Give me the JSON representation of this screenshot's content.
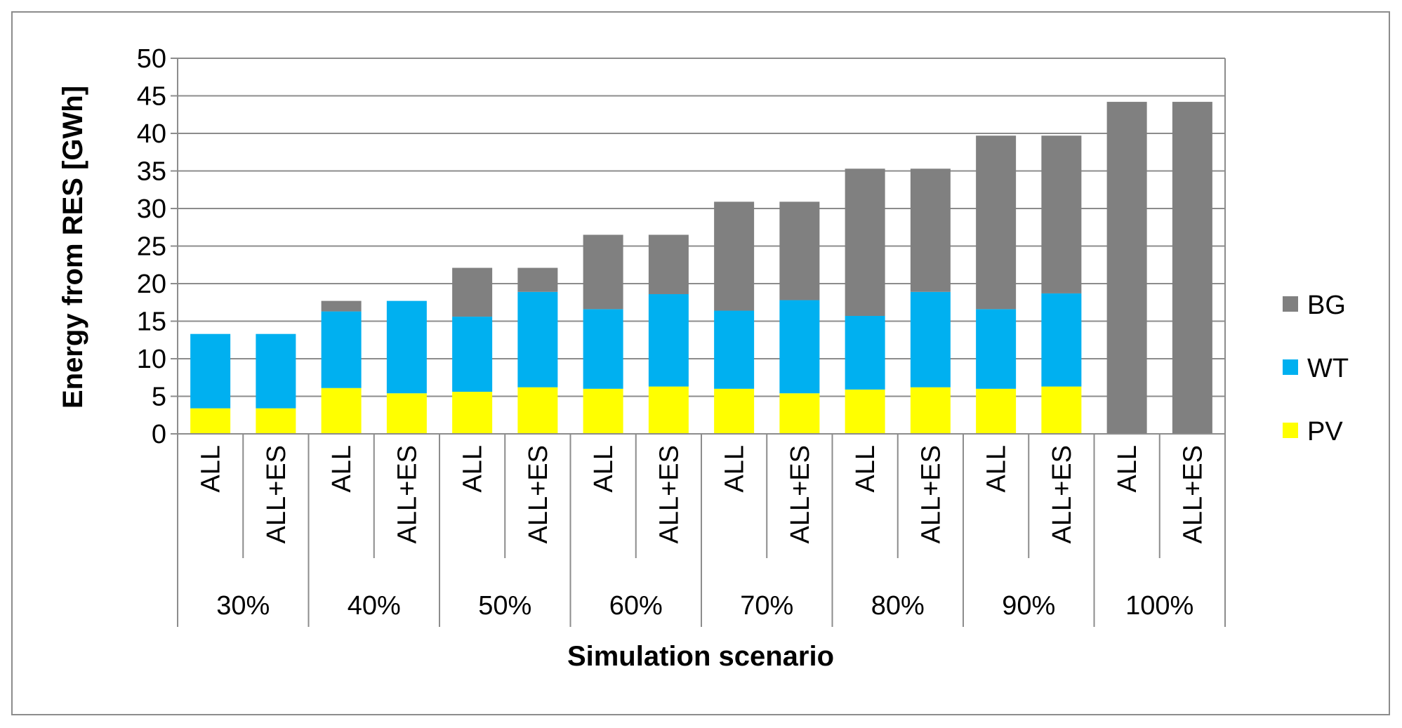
{
  "chart_data": {
    "type": "bar",
    "stacked": true,
    "title": "",
    "xlabel": "Simulation scenario",
    "ylabel": "Energy from RES [GWh]",
    "ylim": [
      0,
      50
    ],
    "yticks": [
      0,
      5,
      10,
      15,
      20,
      25,
      30,
      35,
      40,
      45,
      50
    ],
    "grid": true,
    "legend_position": "right",
    "groups": [
      "30%",
      "40%",
      "50%",
      "60%",
      "70%",
      "80%",
      "90%",
      "100%"
    ],
    "subcategories": [
      "ALL",
      "ALL+ES"
    ],
    "categories": [
      "ALL",
      "ALL+ES",
      "ALL",
      "ALL+ES",
      "ALL",
      "ALL+ES",
      "ALL",
      "ALL+ES",
      "ALL",
      "ALL+ES",
      "ALL",
      "ALL+ES",
      "ALL",
      "ALL+ES",
      "ALL",
      "ALL+ES"
    ],
    "series": [
      {
        "name": "PV",
        "color": "#ffff00",
        "values": [
          3.4,
          3.4,
          6.1,
          5.4,
          5.6,
          6.2,
          6.0,
          6.3,
          6.0,
          5.4,
          5.9,
          6.2,
          6.0,
          6.3,
          0,
          0
        ]
      },
      {
        "name": "WT",
        "color": "#00b0f0",
        "values": [
          9.9,
          9.9,
          10.2,
          12.3,
          10.0,
          12.7,
          10.6,
          12.3,
          10.4,
          12.4,
          9.8,
          12.7,
          10.6,
          12.4,
          0,
          0
        ]
      },
      {
        "name": "BG",
        "color": "#808080",
        "values": [
          0,
          0,
          1.4,
          0,
          6.5,
          3.2,
          9.9,
          7.9,
          14.5,
          13.1,
          19.6,
          16.4,
          23.1,
          21.0,
          44.2,
          44.2
        ]
      }
    ]
  }
}
